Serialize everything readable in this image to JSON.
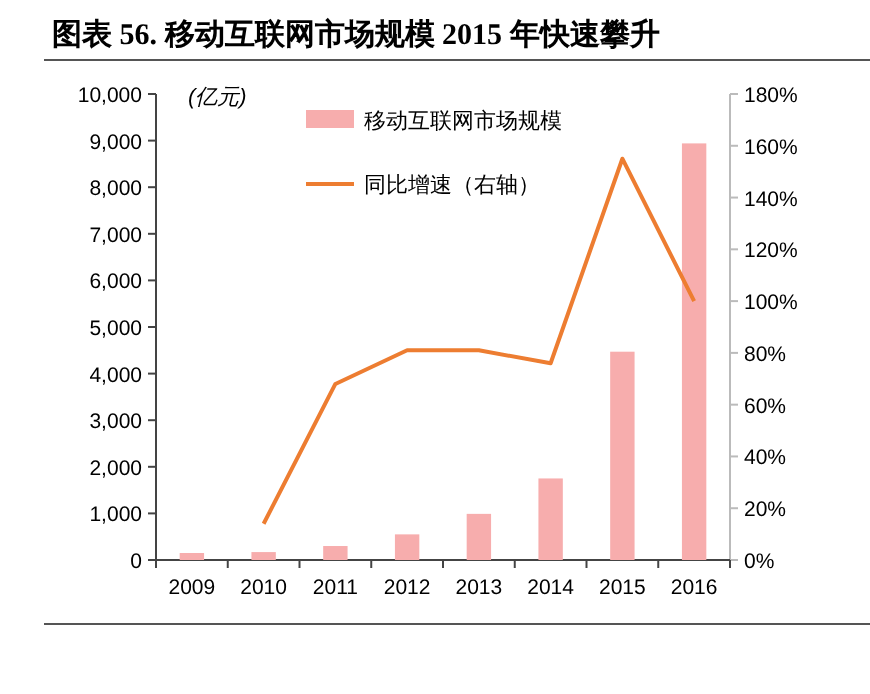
{
  "chart_data": {
    "type": "bar",
    "title": "图表 56. 移动互联网市场规模 2015 年快速攀升",
    "ylabel": "(亿元)",
    "categories": [
      "2009",
      "2010",
      "2011",
      "2012",
      "2013",
      "2014",
      "2015",
      "2016"
    ],
    "series": [
      {
        "name": "移动互联网市场规模",
        "color": "#f7adad",
        "values": [
          150,
          170,
          300,
          550,
          990,
          1750,
          4470,
          8940
        ]
      },
      {
        "name": "同比增速（右轴）",
        "type": "line",
        "axis": "y2",
        "color": "#ed7d31",
        "values": [
          null,
          14,
          68,
          81,
          81,
          76,
          155,
          100
        ]
      }
    ],
    "ylim": [
      0,
      10000
    ],
    "yticks": [
      0,
      {
        "value": 1000,
        "label": "1,000"
      },
      {
        "value": 2000,
        "label": "2,000"
      },
      {
        "value": 3000,
        "label": "3,000"
      },
      {
        "value": 4000,
        "label": "4,000"
      },
      {
        "value": 5000,
        "label": "5,000"
      },
      {
        "value": 6000,
        "label": "6,000"
      },
      {
        "value": 7000,
        "label": "7,000"
      },
      {
        "value": 8000,
        "label": "8,000"
      },
      {
        "value": 9000,
        "label": "9,000"
      },
      {
        "value": 10000,
        "label": "10,000"
      }
    ],
    "y2lim": [
      0,
      180
    ],
    "y2ticks": [
      {
        "value": 0,
        "label": "0%"
      },
      {
        "value": 20,
        "label": "20%"
      },
      {
        "value": 40,
        "label": "40%"
      },
      {
        "value": 60,
        "label": "60%"
      },
      {
        "value": 80,
        "label": "80%"
      },
      {
        "value": 100,
        "label": "100%"
      },
      {
        "value": 120,
        "label": "120%"
      },
      {
        "value": 140,
        "label": "140%"
      },
      {
        "value": 160,
        "label": "160%"
      },
      {
        "value": 180,
        "label": "180%"
      }
    ],
    "grid": false,
    "legend": "top"
  }
}
